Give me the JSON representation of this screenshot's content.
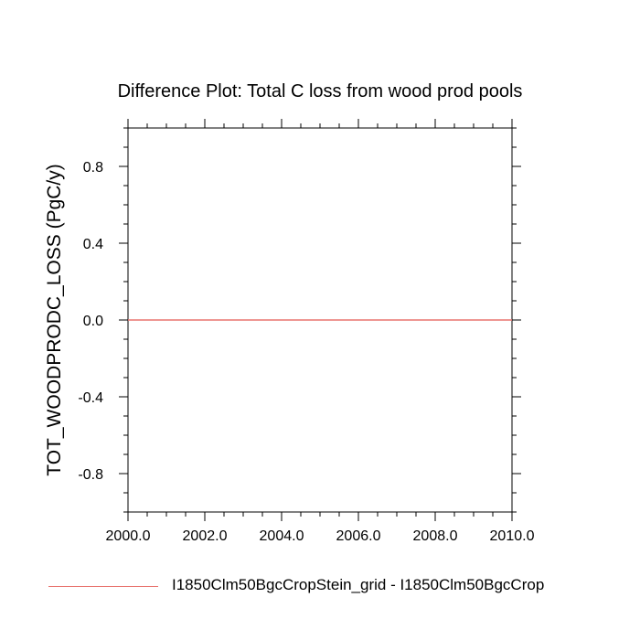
{
  "chart_data": {
    "type": "line",
    "title": "Difference Plot: Total C loss from wood prod pools",
    "xlabel": "",
    "ylabel": "TOT_WOODPRODC_LOSS  (PgC/y)",
    "xlim": [
      2000.0,
      2010.0
    ],
    "ylim": [
      -1.0,
      1.0
    ],
    "x_tick_labels": [
      "2000.0",
      "2002.0",
      "2004.0",
      "2006.0",
      "2008.0",
      "2010.0"
    ],
    "x_ticks": [
      2000,
      2002,
      2004,
      2006,
      2008,
      2010
    ],
    "y_tick_labels": [
      "-0.8",
      "-0.4",
      "0.0",
      "0.4",
      "0.8"
    ],
    "y_ticks": [
      -0.8,
      -0.4,
      0.0,
      0.4,
      0.8
    ],
    "grid": false,
    "legend_position": "bottom",
    "series": [
      {
        "name": "I1850Clm50BgcCropStein_grid - I1850Clm50BgcCrop",
        "color": "#e8736e",
        "x": [
          2000,
          2010
        ],
        "y": [
          0.0,
          0.0
        ]
      }
    ]
  }
}
